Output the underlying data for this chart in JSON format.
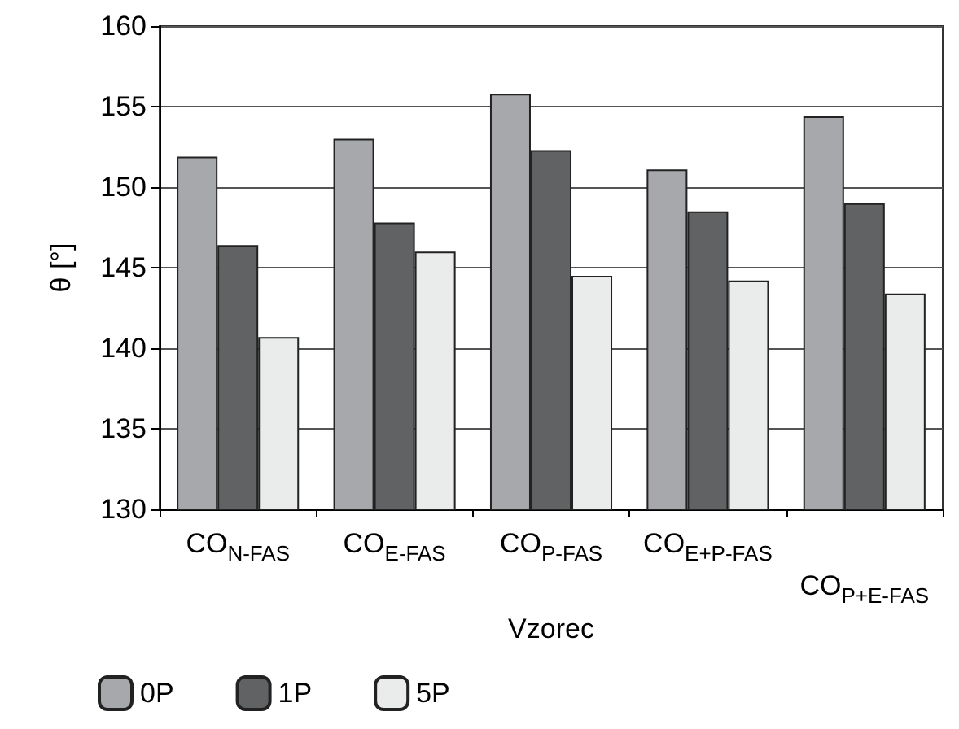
{
  "chart_data": {
    "type": "bar",
    "xlabel": "Vzorec",
    "ylabel": "θ [°]",
    "categories": [
      "CO$_{N-FAS}$",
      "CO$_{E-FAS}$",
      "CO$_{P-FAS}$",
      "CO$_{E+P-FAS}$",
      "CO$_{P+E-FAS}$"
    ],
    "series": [
      {
        "name": "0P",
        "color": "#a7a8ac",
        "values": [
          151.9,
          153.0,
          155.8,
          151.1,
          154.4
        ]
      },
      {
        "name": "1P",
        "color": "#616264",
        "values": [
          146.4,
          147.8,
          152.3,
          148.5,
          149.0
        ]
      },
      {
        "name": "5P",
        "color": "#eaeceb",
        "values": [
          140.7,
          146.0,
          144.5,
          144.2,
          143.4
        ]
      }
    ],
    "ylim": [
      130,
      160
    ],
    "yticks": [
      130,
      135,
      140,
      145,
      150,
      155,
      160
    ],
    "grid": "y",
    "legend": "bottom left"
  }
}
